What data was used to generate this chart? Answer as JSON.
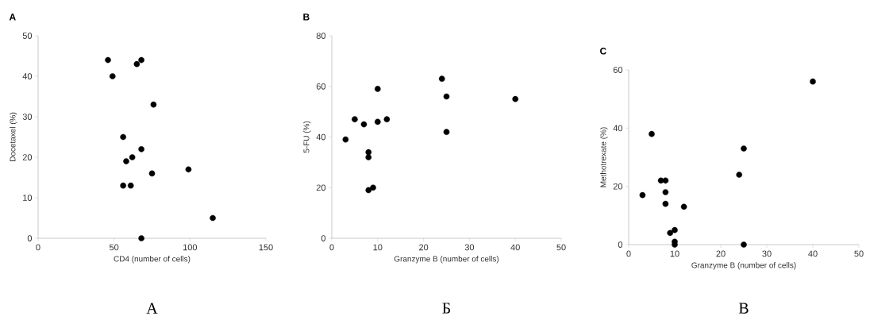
{
  "chart_data": [
    {
      "type": "scatter",
      "title": "A",
      "xlabel": "CD4 (number of cells)",
      "ylabel": "Docetaxel (%)",
      "x": [
        46,
        49,
        68,
        65,
        76,
        56,
        68,
        62,
        58,
        75,
        99,
        56,
        61,
        115,
        68
      ],
      "series": [
        {
          "color": "#000000",
          "values": [
            44,
            40,
            44,
            43,
            33,
            25,
            22,
            20,
            19,
            16,
            17,
            13,
            13,
            5,
            0
          ]
        }
      ],
      "xlim": [
        0,
        150
      ],
      "ylim": [
        0,
        50
      ],
      "xticks": [
        0,
        50,
        100,
        150
      ],
      "yticks": [
        0,
        10,
        20,
        30,
        40,
        50
      ],
      "annotations": [
        "А"
      ]
    },
    {
      "type": "scatter",
      "title": "B",
      "xlabel": "Granzyme B (number of cells)",
      "ylabel": "5-FU (%)",
      "x": [
        3,
        5,
        7,
        10,
        10,
        12,
        8,
        8,
        8,
        9,
        24,
        25,
        25,
        40
      ],
      "series": [
        {
          "color": "#000000",
          "values": [
            39,
            47,
            45,
            59,
            46,
            47,
            34,
            32,
            19,
            20,
            63,
            56,
            42,
            55
          ]
        }
      ],
      "xlim": [
        0,
        50
      ],
      "ylim": [
        0,
        80
      ],
      "xticks": [
        0,
        10,
        20,
        30,
        40,
        50
      ],
      "yticks": [
        0,
        20,
        40,
        60,
        80
      ],
      "annotations": [
        "Б"
      ]
    },
    {
      "type": "scatter",
      "title": "C",
      "xlabel": "Granzyme B (number of cells)",
      "ylabel": "Methotrexate (%)",
      "x": [
        3,
        5,
        7,
        8,
        8,
        8,
        12,
        9,
        10,
        10,
        10,
        24,
        25,
        25,
        40
      ],
      "series": [
        {
          "color": "#000000",
          "values": [
            17,
            38,
            22,
            22,
            18,
            14,
            13,
            4,
            5,
            1,
            0,
            24,
            33,
            0,
            56
          ]
        }
      ],
      "xlim": [
        0,
        50
      ],
      "ylim": [
        0,
        60
      ],
      "xticks": [
        0,
        10,
        20,
        30,
        40,
        50
      ],
      "yticks": [
        0,
        20,
        40,
        60
      ],
      "annotations": [
        "В"
      ]
    }
  ]
}
